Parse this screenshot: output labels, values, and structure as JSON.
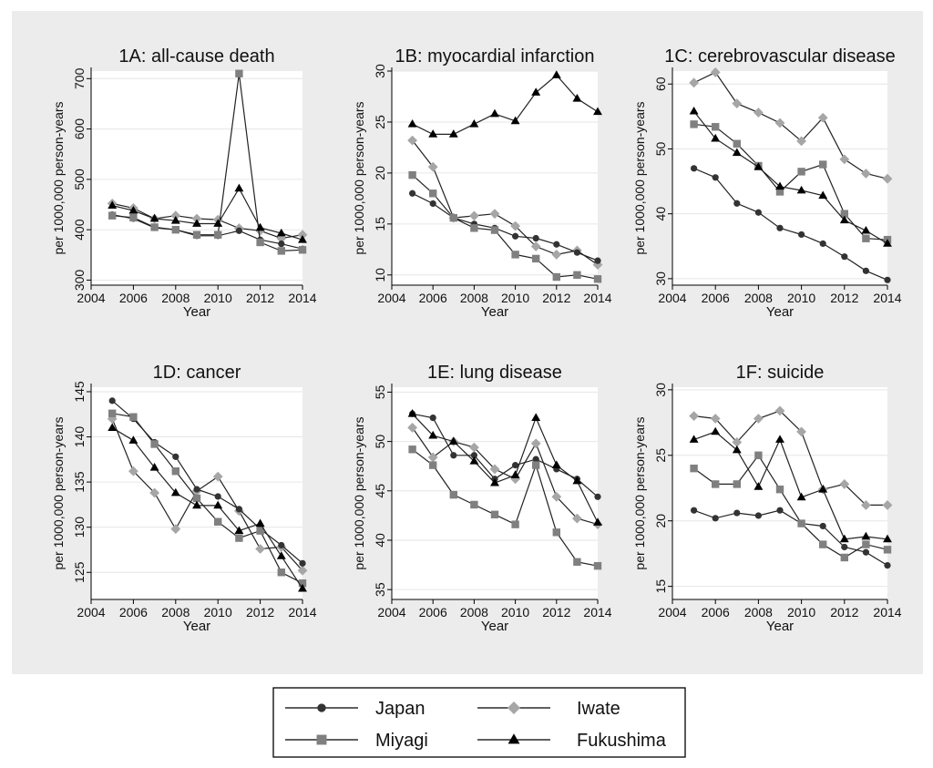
{
  "chart_data": [
    {
      "id": "1A",
      "type": "line",
      "title": "1A: all-cause death",
      "xlabel": "Year",
      "ylabel": "per 1000,000 person-years",
      "x": [
        2005,
        2006,
        2007,
        2008,
        2009,
        2010,
        2011,
        2012,
        2013,
        2014
      ],
      "xlim": [
        2004,
        2014
      ],
      "xticks": [
        "2004",
        "2006",
        "2008",
        "2010",
        "2012",
        "2014"
      ],
      "ylim": [
        290,
        715
      ],
      "yticks": [
        "300",
        "400",
        "500",
        "600",
        "700"
      ],
      "series": [
        {
          "name": "Japan",
          "values": [
            430,
            422,
            404,
            400,
            388,
            388,
            398,
            380,
            372,
            362
          ]
        },
        {
          "name": "Iwate",
          "values": [
            452,
            443,
            422,
            428,
            422,
            420,
            403,
            398,
            383,
            390
          ]
        },
        {
          "name": "Miyagi",
          "values": [
            428,
            424,
            405,
            400,
            390,
            390,
            710,
            375,
            358,
            360
          ]
        },
        {
          "name": "Fukushima",
          "values": [
            448,
            438,
            422,
            418,
            412,
            412,
            482,
            404,
            393,
            380
          ]
        }
      ]
    },
    {
      "id": "1B",
      "type": "line",
      "title": "1B: myocardial infarction",
      "xlabel": "Year",
      "ylabel": "per 1000,000 person-years",
      "x": [
        2005,
        2006,
        2007,
        2008,
        2009,
        2010,
        2011,
        2012,
        2013,
        2014
      ],
      "xlim": [
        2004,
        2014
      ],
      "xticks": [
        "2004",
        "2006",
        "2008",
        "2010",
        "2012",
        "2014"
      ],
      "ylim": [
        9,
        30
      ],
      "yticks": [
        "10",
        "15",
        "20",
        "25",
        "30"
      ],
      "series": [
        {
          "name": "Japan",
          "values": [
            18.0,
            17.0,
            15.6,
            15.0,
            14.6,
            13.8,
            13.6,
            13.0,
            12.2,
            11.4
          ]
        },
        {
          "name": "Iwate",
          "values": [
            23.2,
            20.6,
            15.6,
            15.8,
            16.0,
            14.8,
            12.8,
            12.0,
            12.4,
            11.0
          ]
        },
        {
          "name": "Miyagi",
          "values": [
            19.8,
            18.0,
            15.6,
            14.6,
            14.4,
            12.0,
            11.6,
            9.8,
            10.0,
            9.6
          ]
        },
        {
          "name": "Fukushima",
          "values": [
            24.8,
            23.8,
            23.8,
            24.8,
            25.8,
            25.1,
            27.9,
            29.6,
            27.3,
            26.0
          ]
        }
      ]
    },
    {
      "id": "1C",
      "type": "line",
      "title": "1C: cerebrovascular disease",
      "xlabel": "Year",
      "ylabel": "per 1000,000 person-years",
      "x": [
        2005,
        2006,
        2007,
        2008,
        2009,
        2010,
        2011,
        2012,
        2013,
        2014
      ],
      "xlim": [
        2004,
        2014
      ],
      "xticks": [
        "2004",
        "2006",
        "2008",
        "2010",
        "2012",
        "2014"
      ],
      "ylim": [
        29,
        62
      ],
      "yticks": [
        "30",
        "40",
        "50",
        "60"
      ],
      "series": [
        {
          "name": "Japan",
          "values": [
            47.0,
            45.6,
            41.6,
            40.2,
            37.8,
            36.8,
            35.4,
            33.4,
            31.2,
            29.8
          ]
        },
        {
          "name": "Iwate",
          "values": [
            60.2,
            61.8,
            57.0,
            55.6,
            54.0,
            51.2,
            54.8,
            48.4,
            46.2,
            45.4
          ]
        },
        {
          "name": "Miyagi",
          "values": [
            53.8,
            53.4,
            50.8,
            47.4,
            43.4,
            46.5,
            47.6,
            40.0,
            36.2,
            36.0
          ]
        },
        {
          "name": "Fukushima",
          "values": [
            55.8,
            51.6,
            49.4,
            47.2,
            44.2,
            43.6,
            42.8,
            39.0,
            37.4,
            35.4
          ]
        }
      ]
    },
    {
      "id": "1D",
      "type": "line",
      "title": "1D: cancer",
      "xlabel": "Year",
      "ylabel": "per 1000,000 person-years",
      "x": [
        2005,
        2006,
        2007,
        2008,
        2009,
        2010,
        2011,
        2012,
        2013,
        2014
      ],
      "xlim": [
        2004,
        2014
      ],
      "xticks": [
        "2004",
        "2006",
        "2008",
        "2010",
        "2012",
        "2014"
      ],
      "ylim": [
        122,
        145.5
      ],
      "yticks": [
        "125",
        "130",
        "135",
        "140",
        "145"
      ],
      "series": [
        {
          "name": "Japan",
          "values": [
            144.0,
            142.0,
            139.4,
            137.8,
            134.2,
            133.4,
            132.0,
            129.8,
            128.0,
            126.0
          ]
        },
        {
          "name": "Iwate",
          "values": [
            142.0,
            136.2,
            133.8,
            129.8,
            134.0,
            135.6,
            131.8,
            127.6,
            127.8,
            125.2
          ]
        },
        {
          "name": "Miyagi",
          "values": [
            142.6,
            142.2,
            139.2,
            136.2,
            133.2,
            130.6,
            128.8,
            129.6,
            125.0,
            123.8
          ]
        },
        {
          "name": "Fukushima",
          "values": [
            141.0,
            139.6,
            136.6,
            133.8,
            132.4,
            132.4,
            129.6,
            130.4,
            126.8,
            123.2
          ]
        }
      ]
    },
    {
      "id": "1E",
      "type": "line",
      "title": "1E: lung disease",
      "xlabel": "Year",
      "ylabel": "per 1000,000 person-years",
      "x": [
        2005,
        2006,
        2007,
        2008,
        2009,
        2010,
        2011,
        2012,
        2013,
        2014
      ],
      "xlim": [
        2004,
        2014
      ],
      "xticks": [
        "2004",
        "2006",
        "2008",
        "2010",
        "2012",
        "2014"
      ],
      "ylim": [
        34,
        55.5
      ],
      "yticks": [
        "35",
        "40",
        "45",
        "50",
        "55"
      ],
      "series": [
        {
          "name": "Japan",
          "values": [
            52.8,
            52.4,
            48.6,
            48.6,
            46.2,
            47.6,
            48.2,
            47.2,
            46.2,
            44.4
          ]
        },
        {
          "name": "Iwate",
          "values": [
            51.4,
            48.4,
            50.0,
            49.4,
            47.2,
            46.2,
            49.8,
            44.4,
            42.2,
            41.6
          ]
        },
        {
          "name": "Miyagi",
          "values": [
            49.2,
            47.6,
            44.6,
            43.6,
            42.6,
            41.6,
            47.6,
            40.8,
            37.8,
            37.4
          ]
        },
        {
          "name": "Fukushima",
          "values": [
            52.8,
            50.6,
            50.0,
            48.0,
            45.8,
            46.6,
            52.4,
            47.6,
            46.0,
            41.8
          ]
        }
      ]
    },
    {
      "id": "1F",
      "type": "line",
      "title": "1F: suicide",
      "xlabel": "Year",
      "ylabel": "per 1000,000 person-years",
      "x": [
        2005,
        2006,
        2007,
        2008,
        2009,
        2010,
        2011,
        2012,
        2013,
        2014
      ],
      "xlim": [
        2004,
        2014
      ],
      "xticks": [
        "2004",
        "2006",
        "2008",
        "2010",
        "2012",
        "2014"
      ],
      "ylim": [
        14,
        30.2
      ],
      "yticks": [
        "15",
        "20",
        "25",
        "30"
      ],
      "series": [
        {
          "name": "Japan",
          "values": [
            20.8,
            20.2,
            20.6,
            20.4,
            20.8,
            19.8,
            19.6,
            18.0,
            17.6,
            16.6
          ]
        },
        {
          "name": "Iwate",
          "values": [
            28.0,
            27.8,
            26.0,
            27.8,
            28.4,
            26.8,
            22.4,
            22.8,
            21.2,
            21.2
          ]
        },
        {
          "name": "Miyagi",
          "values": [
            24.0,
            22.8,
            22.8,
            25.0,
            22.4,
            19.8,
            18.2,
            17.2,
            18.2,
            17.8
          ]
        },
        {
          "name": "Fukushima",
          "values": [
            26.2,
            26.8,
            25.4,
            22.6,
            26.2,
            21.8,
            22.4,
            18.6,
            18.8,
            18.6
          ]
        }
      ]
    }
  ],
  "legend": {
    "items": [
      {
        "name": "Japan",
        "marker": "circle",
        "color": "#333333"
      },
      {
        "name": "Iwate",
        "marker": "diamond",
        "color": "#a6a6a6"
      },
      {
        "name": "Miyagi",
        "marker": "square",
        "color": "#808080"
      },
      {
        "name": "Fukushima",
        "marker": "triangle",
        "color": "#000000"
      }
    ]
  },
  "colors": {
    "panel_bg": "#ececec",
    "plot_bg": "#ffffff",
    "grid": "#e6e6e6",
    "line": "#222222"
  }
}
